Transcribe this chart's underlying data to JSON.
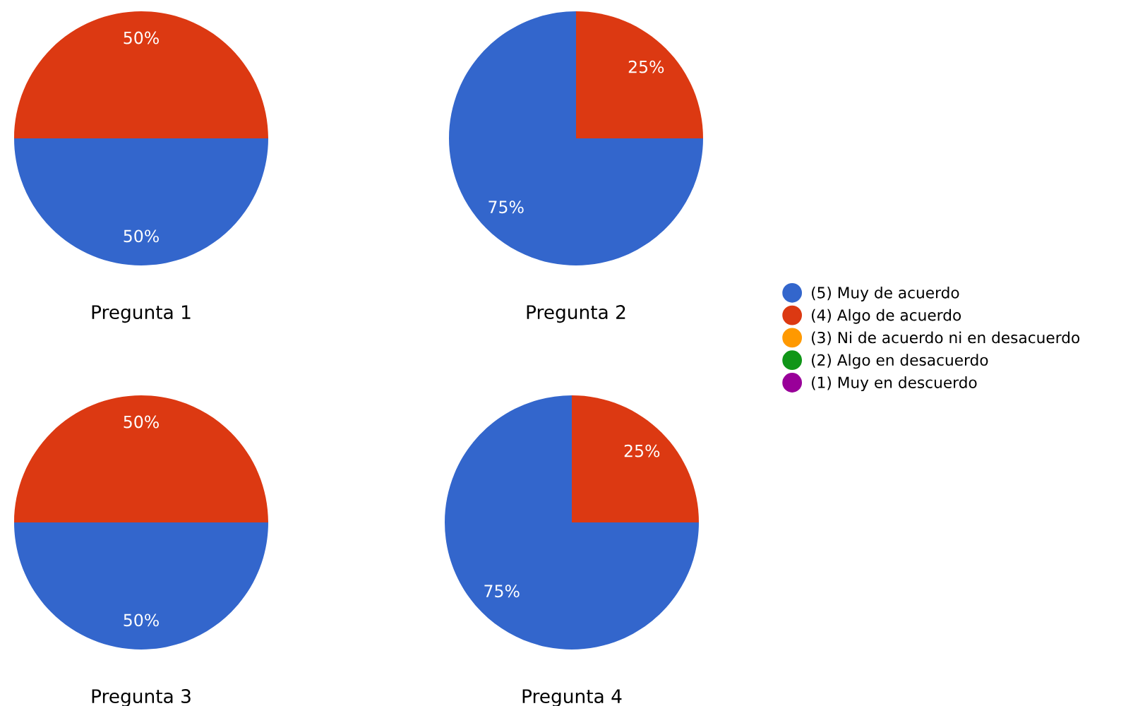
{
  "chart_data": [
    {
      "type": "pie",
      "title": "Pregunta 1",
      "categories": [
        "(5) Muy de acuerdo",
        "(4) Algo de acuerdo",
        "(3) Ni de acuerdo ni en desacuerdo",
        "(2) Algo en desacuerdo",
        "(1) Muy en descuerdo"
      ],
      "values": [
        50,
        50,
        0,
        0,
        0
      ],
      "value_labels": [
        "50%",
        "50%",
        null,
        null,
        null
      ],
      "colors": [
        "#3366cc",
        "#dc3912",
        "#ff9900",
        "#109618",
        "#990099"
      ],
      "legend": "right"
    },
    {
      "type": "pie",
      "title": "Pregunta 2",
      "categories": [
        null,
        null,
        null,
        null,
        null
      ],
      "values": [
        75,
        25,
        0,
        0,
        0
      ],
      "value_labels": [
        "75%",
        "25%",
        null,
        null,
        null
      ],
      "colors": [
        "#3366cc",
        "#dc3912",
        "#ff9900",
        "#109618",
        "#990099"
      ]
    },
    {
      "type": "pie",
      "title": "Pregunta 3",
      "categories": [
        null,
        null,
        null,
        null,
        null
      ],
      "values": [
        50,
        50,
        0,
        0,
        0
      ],
      "value_labels": [
        "50%",
        "50%",
        null,
        null,
        null
      ],
      "colors": [
        "#3366cc",
        "#dc3912",
        "#ff9900",
        "#109618",
        "#990099"
      ]
    },
    {
      "type": "pie",
      "title": "Pregunta 4",
      "categories": [
        null,
        null,
        null,
        null,
        null
      ],
      "values": [
        75,
        25,
        0,
        0,
        0
      ],
      "value_labels": [
        "75%",
        "25%",
        null,
        null,
        null
      ],
      "colors": [
        "#3366cc",
        "#dc3912",
        "#ff9900",
        "#109618",
        "#990099"
      ]
    }
  ]
}
